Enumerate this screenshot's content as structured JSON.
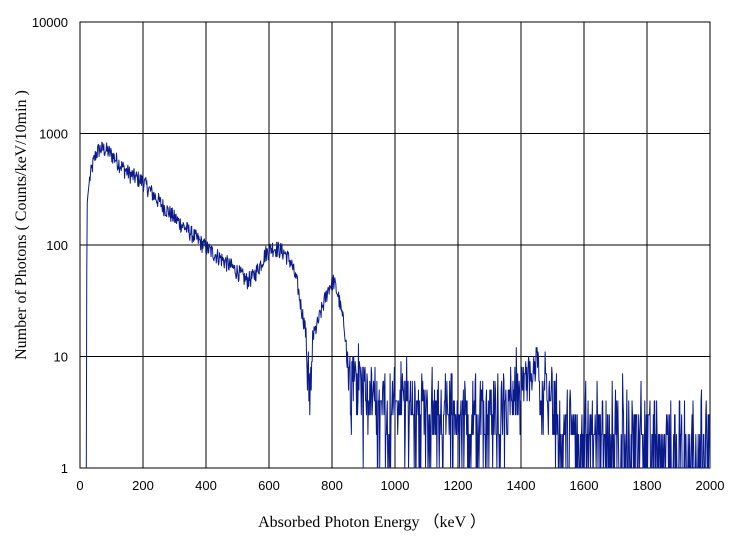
{
  "chart_data": {
    "type": "line",
    "title": "",
    "xlabel": "Absorbed Photon Energy （keV ）",
    "ylabel": "Number  of Photons ( Counts/keV/10min  )",
    "xlim": [
      0,
      2000
    ],
    "ylim": [
      1,
      10000
    ],
    "yscale": "log",
    "grid": true,
    "xticks": [
      0,
      200,
      400,
      600,
      800,
      1000,
      1200,
      1400,
      1600,
      1800,
      2000
    ],
    "yticks": [
      1,
      10,
      100,
      1000,
      10000
    ],
    "xtick_labels": [
      "0",
      "200",
      "400",
      "600",
      "800",
      "1000",
      "1200",
      "1400",
      "1600",
      "1800",
      "2000"
    ],
    "ytick_labels": [
      "1",
      "10",
      "100",
      "1000",
      "10000"
    ],
    "line_color": "#0a1a8a",
    "series": [
      {
        "name": "",
        "points": [
          [
            20,
            1
          ],
          [
            22,
            220
          ],
          [
            25,
            280
          ],
          [
            30,
            380
          ],
          [
            40,
            520
          ],
          [
            50,
            650
          ],
          [
            60,
            720
          ],
          [
            70,
            730
          ],
          [
            80,
            720
          ],
          [
            90,
            690
          ],
          [
            100,
            650
          ],
          [
            120,
            560
          ],
          [
            140,
            480
          ],
          [
            160,
            430
          ],
          [
            180,
            400
          ],
          [
            200,
            370
          ],
          [
            230,
            290
          ],
          [
            260,
            230
          ],
          [
            300,
            175
          ],
          [
            350,
            130
          ],
          [
            400,
            95
          ],
          [
            450,
            75
          ],
          [
            500,
            58
          ],
          [
            530,
            48
          ],
          [
            550,
            52
          ],
          [
            570,
            65
          ],
          [
            590,
            85
          ],
          [
            610,
            95
          ],
          [
            630,
            92
          ],
          [
            650,
            85
          ],
          [
            670,
            70
          ],
          [
            690,
            45
          ],
          [
            700,
            30
          ],
          [
            715,
            18
          ],
          [
            725,
            8
          ],
          [
            730,
            4
          ],
          [
            740,
            15
          ],
          [
            755,
            20
          ],
          [
            770,
            28
          ],
          [
            790,
            42
          ],
          [
            805,
            48
          ],
          [
            820,
            35
          ],
          [
            840,
            18
          ],
          [
            850,
            10
          ],
          [
            870,
            7
          ],
          [
            900,
            5
          ],
          [
            950,
            4
          ],
          [
            1000,
            4
          ],
          [
            1100,
            3.5
          ],
          [
            1200,
            3
          ],
          [
            1300,
            3
          ],
          [
            1380,
            4
          ],
          [
            1420,
            6
          ],
          [
            1450,
            8
          ],
          [
            1480,
            5
          ],
          [
            1520,
            3
          ],
          [
            1600,
            2
          ],
          [
            1700,
            2
          ],
          [
            1800,
            1.8
          ],
          [
            1900,
            1.7
          ],
          [
            2000,
            1.6
          ]
        ]
      }
    ]
  }
}
